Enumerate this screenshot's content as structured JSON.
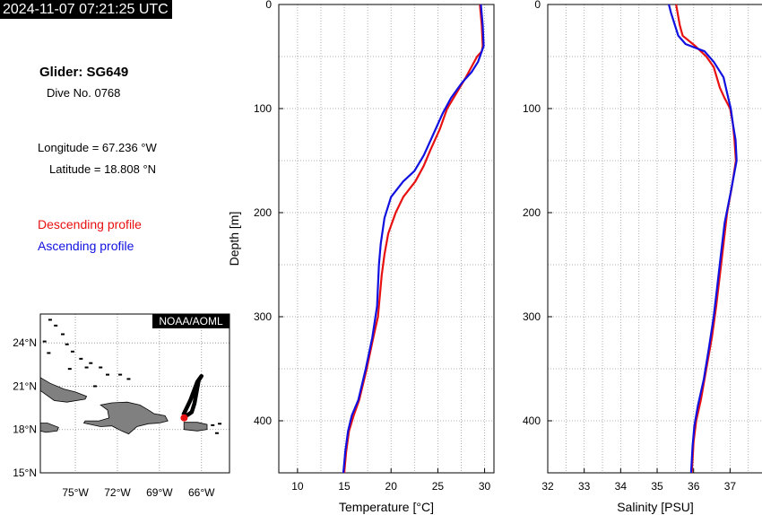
{
  "header": {
    "timestamp": "2024-11-07 07:21:25 UTC",
    "glider": "Glider: SG649",
    "dive": "Dive No. 0768",
    "longitude": "Longitude = 67.236 °W",
    "latitude": "Latitude = 18.808 °N"
  },
  "legend": {
    "descending": "Descending profile",
    "ascending": "Ascending profile"
  },
  "colors": {
    "descending": "#e81010",
    "ascending": "#1010e0"
  },
  "map": {
    "badge": "NOAA/AOML",
    "lat_labels": [
      "24°N",
      "21°N",
      "18°N",
      "15°N"
    ],
    "lon_labels": [
      "75°W",
      "72°W",
      "69°W",
      "66°W"
    ],
    "xlim": [
      -77.5,
      -64.0
    ],
    "ylim": [
      15.0,
      26.0
    ],
    "track_lon": [
      -67.3,
      -66.8,
      -66.3,
      -66.0,
      -66.2,
      -66.5,
      -66.7,
      -67.0,
      -67.3
    ],
    "track_lat": [
      19.0,
      20.0,
      21.3,
      21.7,
      21.4,
      19.8,
      19.2,
      19.0,
      19.0
    ],
    "position": [
      -67.236,
      18.808
    ]
  },
  "chart_data": [
    {
      "type": "line",
      "xlabel": "Temperature [°C]",
      "ylabel": "Depth [m]",
      "xlim": [
        8,
        31
      ],
      "ylim": [
        0,
        450
      ],
      "y_inverted": true,
      "grid": true,
      "x_ticks": [
        10,
        15,
        20,
        25,
        30
      ],
      "y_ticks": [
        0,
        100,
        200,
        300,
        400
      ],
      "series": [
        {
          "name": "Descending profile",
          "x": [
            29.5,
            29.7,
            29.8,
            29.7,
            29.2,
            28.0,
            27.0,
            26.0,
            25.2,
            24.2,
            23.5,
            22.6,
            21.3,
            20.5,
            19.7,
            19.3,
            19.0,
            18.8,
            18.6,
            18.1,
            17.4,
            16.6,
            16.0,
            15.5,
            15.2,
            15.0
          ],
          "y": [
            0,
            20,
            40,
            45,
            50,
            70,
            85,
            100,
            120,
            140,
            155,
            170,
            185,
            200,
            220,
            240,
            260,
            280,
            300,
            320,
            350,
            380,
            395,
            410,
            430,
            450
          ]
        },
        {
          "name": "Ascending profile",
          "x": [
            29.6,
            29.8,
            29.9,
            29.3,
            28.6,
            27.6,
            26.4,
            25.5,
            24.5,
            23.5,
            22.5,
            21.3,
            20.0,
            19.3,
            18.9,
            18.7,
            18.5,
            18.0,
            17.3,
            16.5,
            15.8,
            15.4,
            15.1,
            14.9
          ],
          "y": [
            0,
            20,
            40,
            55,
            65,
            75,
            90,
            105,
            125,
            145,
            160,
            170,
            185,
            205,
            230,
            250,
            290,
            320,
            350,
            380,
            395,
            410,
            430,
            450
          ]
        }
      ]
    },
    {
      "type": "line",
      "xlabel": "Salinity [PSU]",
      "ylabel": "",
      "xlim": [
        32,
        37.9
      ],
      "ylim": [
        0,
        450
      ],
      "y_inverted": true,
      "grid": true,
      "x_ticks": [
        32,
        33,
        34,
        35,
        36,
        37
      ],
      "y_ticks": [
        0,
        100,
        200,
        300,
        400
      ],
      "series": [
        {
          "name": "Descending profile",
          "x": [
            35.52,
            35.62,
            35.7,
            36.05,
            36.35,
            36.55,
            36.72,
            36.85,
            37.0,
            37.08,
            37.12,
            37.16,
            37.05,
            36.92,
            36.82,
            36.72,
            36.62,
            36.5,
            36.35,
            36.2,
            36.07,
            36.0,
            35.95
          ],
          "y": [
            0,
            20,
            30,
            40,
            50,
            60,
            80,
            90,
            100,
            115,
            130,
            150,
            175,
            200,
            230,
            260,
            290,
            320,
            350,
            380,
            400,
            420,
            450
          ]
        },
        {
          "name": "Ascending profile",
          "x": [
            35.32,
            35.38,
            35.58,
            35.78,
            36.3,
            36.55,
            36.82,
            36.95,
            37.02,
            37.08,
            37.15,
            37.18,
            37.02,
            36.85,
            36.75,
            36.65,
            36.55,
            36.42,
            36.28,
            36.12,
            36.02,
            35.97,
            35.93
          ],
          "y": [
            0,
            8,
            30,
            38,
            45,
            55,
            70,
            90,
            100,
            115,
            130,
            150,
            180,
            210,
            240,
            270,
            300,
            330,
            360,
            385,
            405,
            425,
            450
          ]
        }
      ]
    }
  ]
}
